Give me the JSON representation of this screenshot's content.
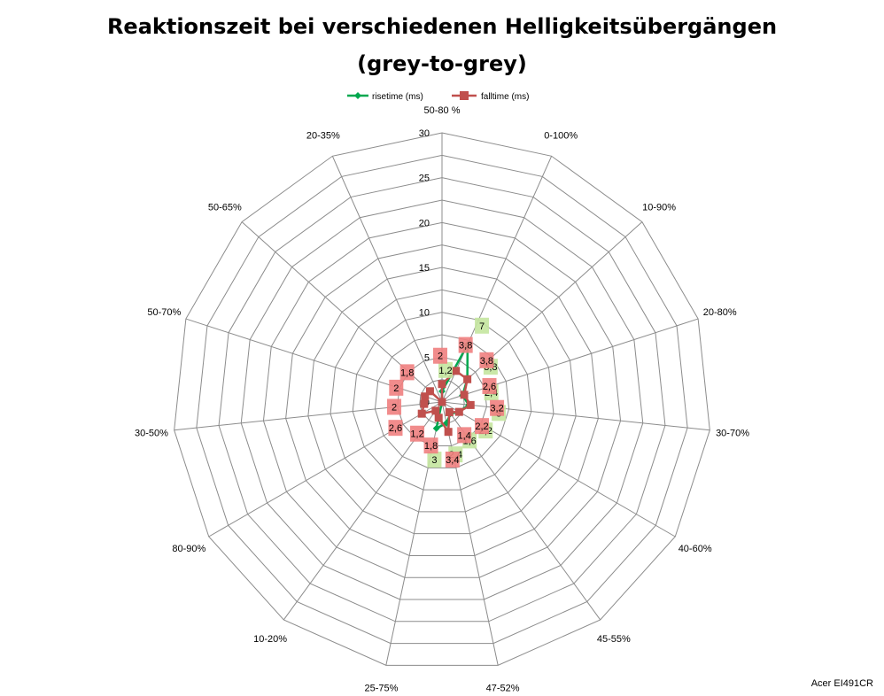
{
  "chart_data": {
    "type": "radar",
    "title_lines": [
      "Reaktionszeit bei verschiedenen Helligkeitsübergängen",
      "(grey-to-grey)"
    ],
    "source": "Acer EI491CR",
    "categories": [
      "50-80 %",
      "0-100%",
      "10-90%",
      "20-80%",
      "30-70%",
      "40-60%",
      "45-55%",
      "47-52%",
      "25-75%",
      "10-20%",
      "80-90%",
      "30-50%",
      "50-70%",
      "50-65%",
      "20-35%"
    ],
    "ticks": [
      0,
      5,
      10,
      15,
      20,
      25,
      30
    ],
    "ylim": [
      0,
      30
    ],
    "grid": true,
    "legend": "top",
    "series": [
      {
        "name": "risetime (ms)",
        "color": "#00a84f",
        "marker": "diamond",
        "label_bg": "#c4e59f",
        "values": [
          1.2,
          7,
          3.8,
          2.4,
          3,
          2.2,
          1.6,
          2.4,
          3,
          0,
          0,
          0,
          0,
          0,
          0
        ]
      },
      {
        "name": "falltime (ms)",
        "color": "#c0504d",
        "marker": "square",
        "label_bg": "#f08080",
        "values": [
          2,
          3.8,
          3.8,
          2.6,
          3.2,
          2.2,
          1.4,
          3.4,
          1.8,
          1.2,
          2.6,
          2,
          2,
          1.8,
          0
        ]
      }
    ]
  }
}
